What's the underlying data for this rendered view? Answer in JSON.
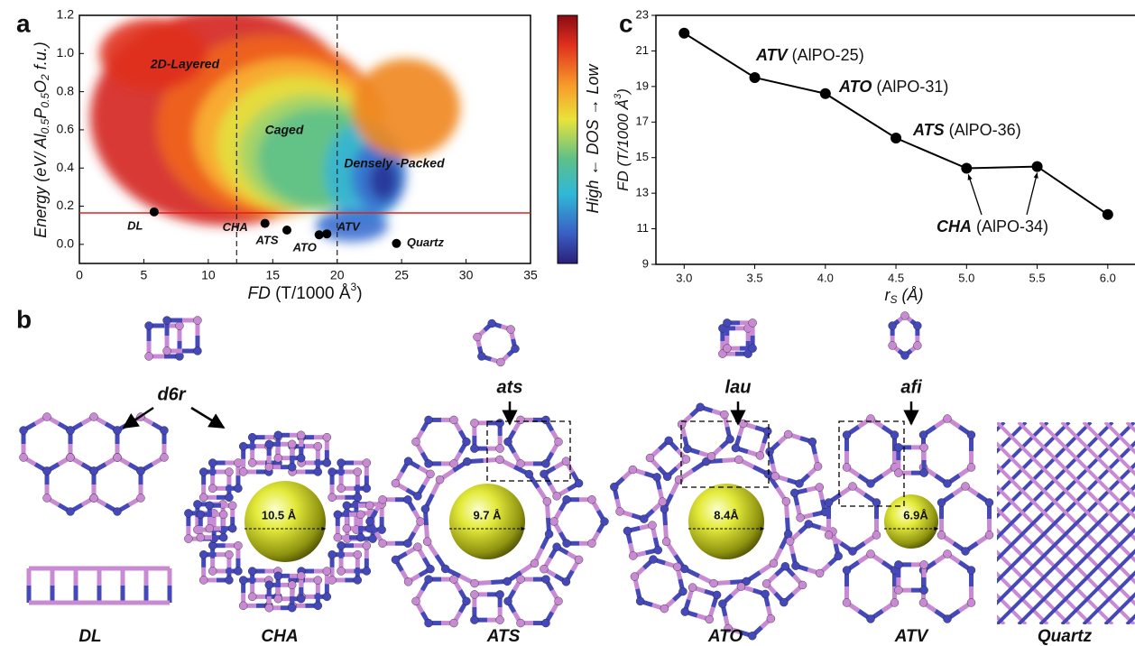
{
  "panel_labels": [
    "a",
    "b",
    "c"
  ],
  "chart_data": [
    {
      "type": "density-scatter",
      "x_label": [
        "FD",
        " (T/1000 Å",
        "3",
        ")"
      ],
      "y_label": [
        "Energy (eV/ Al",
        "0.5",
        "P",
        "0.5",
        "O",
        "2",
        " f.u.)"
      ],
      "colorbar_label": "High ← DOS → Low",
      "xlim": [
        0,
        35
      ],
      "ylim": [
        -0.1,
        1.2
      ],
      "xticks": [
        0,
        5,
        10,
        15,
        20,
        25,
        30,
        35
      ],
      "yticks": [
        {
          "value": 0,
          "label": "0.0"
        },
        0.2,
        0.4,
        0.6,
        0.8,
        {
          "value": 1,
          "label": "1.0"
        },
        1.2
      ],
      "regions": [
        "2D-Layered",
        "Caged",
        "Densely -Packed"
      ],
      "boundaries": [
        12.2,
        20
      ],
      "threshold": 0.165,
      "threshold_color": "#e0201b",
      "points": {
        "names": [
          "DL",
          "CHA",
          "ATS",
          "ATO",
          "ATV",
          "Quartz"
        ],
        "x": [
          5.8,
          14.4,
          16.1,
          18.6,
          19.2,
          24.6
        ],
        "y": [
          0.17,
          0.11,
          0.075,
          0.05,
          0.055,
          0.005
        ]
      }
    },
    {
      "type": "line",
      "x_label": [
        "r",
        "S",
        " (Å)"
      ],
      "y_label": [
        "FD (T/1000 Å",
        "3",
        ")"
      ],
      "x": [
        3.0,
        3.5,
        4.0,
        4.5,
        5.0,
        5.5,
        6.0
      ],
      "values": [
        22,
        19.5,
        18.6,
        16.1,
        14.4,
        14.5,
        11.8
      ],
      "color": "#000000",
      "xlim": [
        2.8,
        6.18
      ],
      "ylim": [
        9,
        23
      ],
      "xticks": [
        {
          "value": 3,
          "label": "3.0"
        },
        3.5,
        {
          "value": 4,
          "label": "4.0"
        },
        4.5,
        {
          "value": 5,
          "label": "5.0"
        },
        5.5,
        {
          "value": 6,
          "label": "6.0"
        }
      ],
      "yticks": [
        9,
        11,
        13,
        15,
        17,
        19,
        21,
        23
      ],
      "annotations": [
        {
          "code": "ATV",
          "name": "(AlPO-25)"
        },
        {
          "code": "ATO",
          "name": "(AlPO-31)"
        },
        {
          "code": "ATS",
          "name": "(AlPO-36)"
        },
        {
          "code": "CHA",
          "name": "(AlPO-34)"
        }
      ]
    }
  ],
  "structures": {
    "units": [
      "d6r",
      "ats",
      "lau",
      "afi"
    ],
    "frameworks": [
      "DL",
      "CHA",
      "ATS",
      "ATO",
      "ATV",
      "Quartz"
    ],
    "pore_sizes": [
      "10.5 Å",
      "9.7 Å",
      "8.4Å",
      "6.9Å"
    ]
  }
}
